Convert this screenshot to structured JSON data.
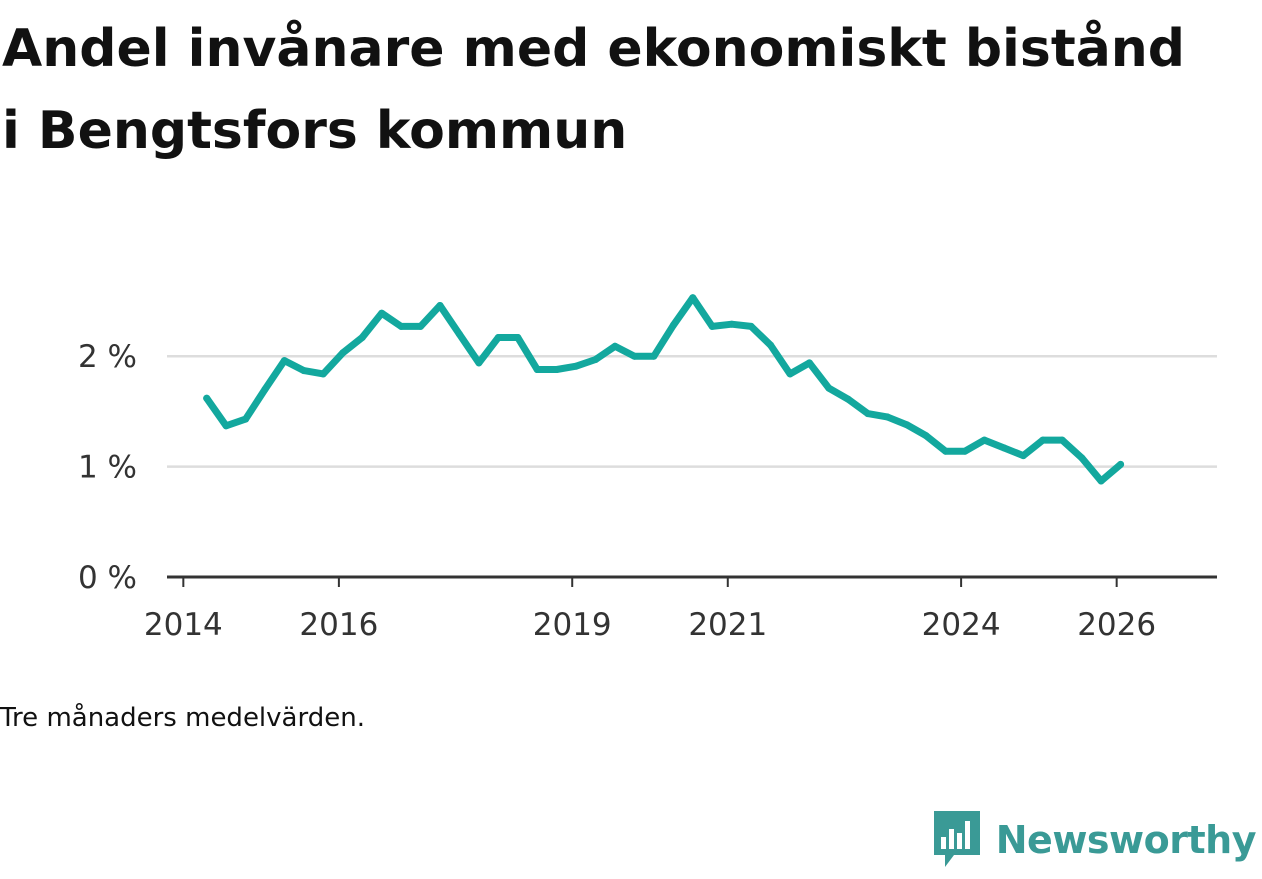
{
  "title": "Andel invånare med ekonomiskt bistånd i Bengtsfors kommun",
  "note": "Tre månaders medelvärden.",
  "brand": "Newsworthy",
  "colors": {
    "line": "#13a89e",
    "grid": "#dddddd",
    "axis": "#333333",
    "brand": "#3a9a96"
  },
  "chart_data": {
    "type": "line",
    "title": "Andel invånare med ekonomiskt bistånd i Bengtsfors kommun",
    "xlabel": "",
    "ylabel": "",
    "ylim": [
      0,
      2.6
    ],
    "yticks": [
      0,
      1,
      2
    ],
    "ytick_labels": [
      "0 %",
      "1 %",
      "2 %"
    ],
    "xticks": [
      2014,
      2016,
      2019,
      2021,
      2024,
      2026
    ],
    "xtick_labels": [
      "2014",
      "2016",
      "2019",
      "2021",
      "2024",
      "2026"
    ],
    "xlim": [
      2013.79,
      2027.29
    ],
    "grid": true,
    "series": [
      {
        "name": "Andel",
        "x": [
          2014.3,
          2014.55,
          2014.8,
          2015.05,
          2015.3,
          2015.55,
          2015.8,
          2016.05,
          2016.3,
          2016.55,
          2016.8,
          2017.05,
          2017.3,
          2017.55,
          2017.8,
          2018.05,
          2018.3,
          2018.55,
          2018.8,
          2019.05,
          2019.3,
          2019.55,
          2019.8,
          2020.05,
          2020.3,
          2020.55,
          2020.8,
          2021.05,
          2021.3,
          2021.55,
          2021.8,
          2022.05,
          2022.3,
          2022.55,
          2022.8,
          2023.05,
          2023.3,
          2023.55,
          2023.8,
          2024.05,
          2024.3,
          2024.55,
          2024.8,
          2025.05,
          2025.3,
          2025.55,
          2025.8,
          2026.05
        ],
        "values": [
          1.62,
          1.37,
          1.43,
          1.7,
          1.96,
          1.87,
          1.84,
          2.03,
          2.17,
          2.39,
          2.27,
          2.27,
          2.46,
          2.2,
          1.94,
          2.17,
          2.17,
          1.88,
          1.88,
          1.91,
          1.97,
          2.09,
          2.0,
          2.0,
          2.28,
          2.53,
          2.27,
          2.29,
          2.27,
          2.1,
          1.84,
          1.94,
          1.71,
          1.61,
          1.48,
          1.45,
          1.38,
          1.28,
          1.14,
          1.14,
          1.24,
          1.17,
          1.1,
          1.24,
          1.24,
          1.08,
          0.87,
          1.02
        ]
      }
    ]
  }
}
